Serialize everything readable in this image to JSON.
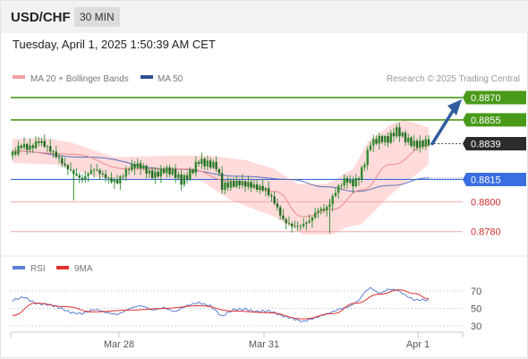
{
  "header": {
    "symbol": "USD/CHF",
    "timeframe": "30 MIN"
  },
  "datetime": "Tuesday, April 1, 2025 1:50:39 AM CET",
  "legend": {
    "ma20_label": "MA 20 + Bollinger Bands",
    "ma50_label": "MA 50",
    "rsi_label": "RSI",
    "ma9_label": "9MA",
    "copyright": "Research © 2025 Trading Central"
  },
  "colors": {
    "bollinger_band": "#ffd5d5",
    "ma20": "#f08a8a",
    "ma50": "#5a70b8",
    "candle": "#2e8b2e",
    "resistance": "#4a9a1a",
    "support": "#f2a8a8",
    "pivot": "#3a6de0",
    "current": "#2b2b2b",
    "arrow": "#2f5d9f",
    "rsi": "#5b7fd6",
    "rsi_ma": "#e03030"
  },
  "chart_data": [
    {
      "type": "candlestick",
      "title": "",
      "instrument": "USD/CHF",
      "interval": "30 MIN",
      "x_labels": [
        "Mar 28",
        "Mar 31",
        "Apr 1"
      ],
      "ylim": [
        0.8769,
        0.8876
      ],
      "price_levels": [
        {
          "value": 0.887,
          "label": "0.8870",
          "kind": "resistance"
        },
        {
          "value": 0.8855,
          "label": "0.8855",
          "kind": "resistance"
        },
        {
          "value": 0.8839,
          "label": "0.8839",
          "kind": "current"
        },
        {
          "value": 0.8815,
          "label": "0.8815",
          "kind": "pivot"
        },
        {
          "value": 0.88,
          "label": "0.8800",
          "kind": "support"
        },
        {
          "value": 0.878,
          "label": "0.8780",
          "kind": "support"
        }
      ],
      "close_path": [
        {
          "t": 0,
          "v": 0.8831
        },
        {
          "t": 3,
          "v": 0.884
        },
        {
          "t": 6,
          "v": 0.8838
        },
        {
          "t": 9,
          "v": 0.884
        },
        {
          "t": 12,
          "v": 0.8834
        },
        {
          "t": 16,
          "v": 0.8829
        },
        {
          "t": 20,
          "v": 0.8823
        },
        {
          "t": 24,
          "v": 0.8814
        },
        {
          "t": 28,
          "v": 0.882
        },
        {
          "t": 32,
          "v": 0.8818
        },
        {
          "t": 36,
          "v": 0.8815
        },
        {
          "t": 40,
          "v": 0.8821
        },
        {
          "t": 44,
          "v": 0.8823
        },
        {
          "t": 48,
          "v": 0.882
        },
        {
          "t": 52,
          "v": 0.8822
        },
        {
          "t": 55,
          "v": 0.8818
        },
        {
          "t": 58,
          "v": 0.8812
        },
        {
          "t": 61,
          "v": 0.882
        },
        {
          "t": 64,
          "v": 0.883
        },
        {
          "t": 67,
          "v": 0.8826
        },
        {
          "t": 70,
          "v": 0.8822
        },
        {
          "t": 72,
          "v": 0.8808
        },
        {
          "t": 75,
          "v": 0.8812
        },
        {
          "t": 78,
          "v": 0.8815
        },
        {
          "t": 81,
          "v": 0.8813
        },
        {
          "t": 84,
          "v": 0.8808
        },
        {
          "t": 87,
          "v": 0.8806
        },
        {
          "t": 90,
          "v": 0.88
        },
        {
          "t": 93,
          "v": 0.879
        },
        {
          "t": 96,
          "v": 0.8785
        },
        {
          "t": 99,
          "v": 0.8782
        },
        {
          "t": 102,
          "v": 0.8785
        },
        {
          "t": 105,
          "v": 0.8795
        },
        {
          "t": 108,
          "v": 0.8798
        },
        {
          "t": 111,
          "v": 0.8808
        },
        {
          "t": 114,
          "v": 0.8813
        },
        {
          "t": 117,
          "v": 0.881
        },
        {
          "t": 119,
          "v": 0.8816
        },
        {
          "t": 121,
          "v": 0.8828
        },
        {
          "t": 123,
          "v": 0.8842
        },
        {
          "t": 126,
          "v": 0.8843
        },
        {
          "t": 129,
          "v": 0.884
        },
        {
          "t": 132,
          "v": 0.8846
        },
        {
          "t": 135,
          "v": 0.8843
        },
        {
          "t": 138,
          "v": 0.8841
        },
        {
          "t": 141,
          "v": 0.884
        },
        {
          "t": 143,
          "v": 0.8839
        }
      ],
      "ma20_path": [
        {
          "t": 0,
          "v": 0.8834
        },
        {
          "t": 20,
          "v": 0.8832
        },
        {
          "t": 40,
          "v": 0.8822
        },
        {
          "t": 60,
          "v": 0.8822
        },
        {
          "t": 75,
          "v": 0.8814
        },
        {
          "t": 90,
          "v": 0.8807
        },
        {
          "t": 100,
          "v": 0.879
        },
        {
          "t": 110,
          "v": 0.8795
        },
        {
          "t": 120,
          "v": 0.8808
        },
        {
          "t": 130,
          "v": 0.8825
        },
        {
          "t": 143,
          "v": 0.8838
        }
      ],
      "bollinger_upper_path": [
        {
          "t": 0,
          "v": 0.8842
        },
        {
          "t": 10,
          "v": 0.8843
        },
        {
          "t": 20,
          "v": 0.884
        },
        {
          "t": 35,
          "v": 0.883
        },
        {
          "t": 55,
          "v": 0.8831
        },
        {
          "t": 68,
          "v": 0.8831
        },
        {
          "t": 80,
          "v": 0.8828
        },
        {
          "t": 90,
          "v": 0.8822
        },
        {
          "t": 98,
          "v": 0.8812
        },
        {
          "t": 108,
          "v": 0.8812
        },
        {
          "t": 117,
          "v": 0.8822
        },
        {
          "t": 122,
          "v": 0.884
        },
        {
          "t": 130,
          "v": 0.8852
        },
        {
          "t": 135,
          "v": 0.8855
        },
        {
          "t": 143,
          "v": 0.885
        }
      ],
      "bollinger_lower_path": [
        {
          "t": 0,
          "v": 0.8826
        },
        {
          "t": 15,
          "v": 0.8825
        },
        {
          "t": 30,
          "v": 0.8816
        },
        {
          "t": 50,
          "v": 0.8815
        },
        {
          "t": 65,
          "v": 0.8814
        },
        {
          "t": 75,
          "v": 0.8801
        },
        {
          "t": 90,
          "v": 0.879
        },
        {
          "t": 100,
          "v": 0.8778
        },
        {
          "t": 110,
          "v": 0.8778
        },
        {
          "t": 115,
          "v": 0.8783
        },
        {
          "t": 120,
          "v": 0.8785
        },
        {
          "t": 130,
          "v": 0.8805
        },
        {
          "t": 143,
          "v": 0.8825
        }
      ],
      "ma50_path": [
        {
          "t": 0,
          "v": 0.8834
        },
        {
          "t": 25,
          "v": 0.883
        },
        {
          "t": 55,
          "v": 0.8822
        },
        {
          "t": 80,
          "v": 0.8817
        },
        {
          "t": 95,
          "v": 0.8815
        },
        {
          "t": 108,
          "v": 0.881
        },
        {
          "t": 118,
          "v": 0.8807
        },
        {
          "t": 130,
          "v": 0.8811
        },
        {
          "t": 143,
          "v": 0.8816
        }
      ],
      "projection": {
        "from": 0.8839,
        "to": 0.887
      }
    },
    {
      "type": "line",
      "title": "",
      "series_names": [
        "RSI",
        "9MA"
      ],
      "ylim": [
        25,
        80
      ],
      "y_ticks": [
        "70",
        "50",
        "30"
      ],
      "rsi_path": [
        {
          "t": 0,
          "v": 58
        },
        {
          "t": 4,
          "v": 63
        },
        {
          "t": 8,
          "v": 57
        },
        {
          "t": 12,
          "v": 54
        },
        {
          "t": 16,
          "v": 50
        },
        {
          "t": 20,
          "v": 46
        },
        {
          "t": 24,
          "v": 45
        },
        {
          "t": 28,
          "v": 48
        },
        {
          "t": 32,
          "v": 45
        },
        {
          "t": 36,
          "v": 44
        },
        {
          "t": 40,
          "v": 50
        },
        {
          "t": 44,
          "v": 52
        },
        {
          "t": 48,
          "v": 48
        },
        {
          "t": 52,
          "v": 52
        },
        {
          "t": 56,
          "v": 46
        },
        {
          "t": 60,
          "v": 52
        },
        {
          "t": 64,
          "v": 57
        },
        {
          "t": 68,
          "v": 54
        },
        {
          "t": 72,
          "v": 40
        },
        {
          "t": 76,
          "v": 48
        },
        {
          "t": 80,
          "v": 50
        },
        {
          "t": 84,
          "v": 47
        },
        {
          "t": 88,
          "v": 46
        },
        {
          "t": 92,
          "v": 42
        },
        {
          "t": 96,
          "v": 40
        },
        {
          "t": 100,
          "v": 35
        },
        {
          "t": 104,
          "v": 38
        },
        {
          "t": 108,
          "v": 44
        },
        {
          "t": 112,
          "v": 50
        },
        {
          "t": 116,
          "v": 52
        },
        {
          "t": 119,
          "v": 58
        },
        {
          "t": 121,
          "v": 68
        },
        {
          "t": 123,
          "v": 74
        },
        {
          "t": 126,
          "v": 68
        },
        {
          "t": 129,
          "v": 72
        },
        {
          "t": 132,
          "v": 70
        },
        {
          "t": 135,
          "v": 64
        },
        {
          "t": 138,
          "v": 60
        },
        {
          "t": 141,
          "v": 61
        },
        {
          "t": 143,
          "v": 60
        }
      ],
      "rsi_ma_path": [
        {
          "t": 0,
          "v": 42
        },
        {
          "t": 8,
          "v": 56
        },
        {
          "t": 18,
          "v": 52
        },
        {
          "t": 28,
          "v": 46
        },
        {
          "t": 40,
          "v": 48
        },
        {
          "t": 52,
          "v": 50
        },
        {
          "t": 64,
          "v": 53
        },
        {
          "t": 76,
          "v": 47
        },
        {
          "t": 88,
          "v": 45
        },
        {
          "t": 100,
          "v": 38
        },
        {
          "t": 110,
          "v": 44
        },
        {
          "t": 118,
          "v": 56
        },
        {
          "t": 126,
          "v": 66
        },
        {
          "t": 133,
          "v": 71
        },
        {
          "t": 138,
          "v": 67
        },
        {
          "t": 143,
          "v": 61
        }
      ]
    }
  ]
}
